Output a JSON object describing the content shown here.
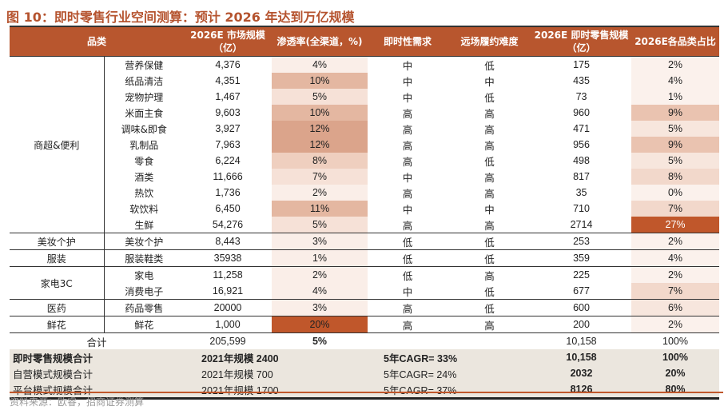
{
  "title": "图 10：即时零售行业空间测算：预计 2026 年达到万亿规模",
  "headers": [
    "品类",
    "",
    "2026E 市场规模（亿）",
    "渗透率(全渠道，%)",
    "即时性需求",
    "远场履约难度",
    "2026E 即时零售规模（亿）",
    "2026E各品类占比"
  ],
  "colors": {
    "header": "#b8562e",
    "accent": "#c0572b",
    "summary_bg": "#ebe6de"
  },
  "groups": [
    {
      "name": "商超&便利",
      "rows": [
        [
          "营养保健",
          "4,376",
          "4%",
          "中",
          "低",
          "175",
          "2%"
        ],
        [
          "纸品清洁",
          "4,351",
          "10%",
          "中",
          "中",
          "435",
          "4%"
        ],
        [
          "宠物护理",
          "1,467",
          "5%",
          "中",
          "低",
          "73",
          "1%"
        ],
        [
          "米面主食",
          "9,603",
          "10%",
          "高",
          "高",
          "960",
          "9%"
        ],
        [
          "调味&即食",
          "3,927",
          "12%",
          "高",
          "高",
          "471",
          "5%"
        ],
        [
          "乳制品",
          "7,963",
          "12%",
          "高",
          "高",
          "956",
          "9%"
        ],
        [
          "零食",
          "6,224",
          "8%",
          "高",
          "低",
          "498",
          "5%"
        ],
        [
          "酒类",
          "11,666",
          "7%",
          "中",
          "高",
          "817",
          "8%"
        ],
        [
          "热饮",
          "1,736",
          "2%",
          "高",
          "高",
          "35",
          "0%"
        ],
        [
          "软饮料",
          "6,450",
          "11%",
          "中",
          "中",
          "710",
          "7%"
        ],
        [
          "生鲜",
          "54,276",
          "5%",
          "高",
          "高",
          "2714",
          "27%"
        ]
      ]
    },
    {
      "name": "美妆个护",
      "rows": [
        [
          "美妆个护",
          "8,443",
          "3%",
          "低",
          "低",
          "253",
          "2%"
        ]
      ]
    },
    {
      "name": "服装",
      "rows": [
        [
          "服装鞋类",
          "35938",
          "1%",
          "低",
          "低",
          "359",
          "4%"
        ]
      ]
    },
    {
      "name": "家电3C",
      "rows": [
        [
          "家电",
          "11,258",
          "2%",
          "低",
          "高",
          "225",
          "2%"
        ],
        [
          "消费电子",
          "16,921",
          "4%",
          "中",
          "低",
          "677",
          "7%"
        ]
      ]
    },
    {
      "name": "医药",
      "rows": [
        [
          "药品零售",
          "20000",
          "3%",
          "高",
          "低",
          "600",
          "6%"
        ]
      ]
    },
    {
      "name": "鲜花",
      "rows": [
        [
          "鲜花",
          "1,000",
          "20%",
          "高",
          "高",
          "200",
          "2%"
        ]
      ]
    }
  ],
  "total": {
    "label": "合计",
    "market": "205,599",
    "pen": "5%",
    "scale": "10,158",
    "share": "100%"
  },
  "summary": [
    {
      "label": "即时零售规模合计",
      "base": "2021年规模 2400",
      "cagr": "5年CAGR= 33%",
      "scale": "10,158",
      "share": "100%"
    },
    {
      "label": "自营模式规模合计",
      "base": "2021年规模 700",
      "cagr": "5年CAGR= 24%",
      "scale": "2032",
      "share": "20%"
    },
    {
      "label": "平台模式规模合计",
      "base": "2021年规模 1700",
      "cagr": "5年CAGR= 37%",
      "scale": "8126",
      "share": "80%"
    }
  ],
  "source": "资料来源：欧睿，招商证券测算"
}
